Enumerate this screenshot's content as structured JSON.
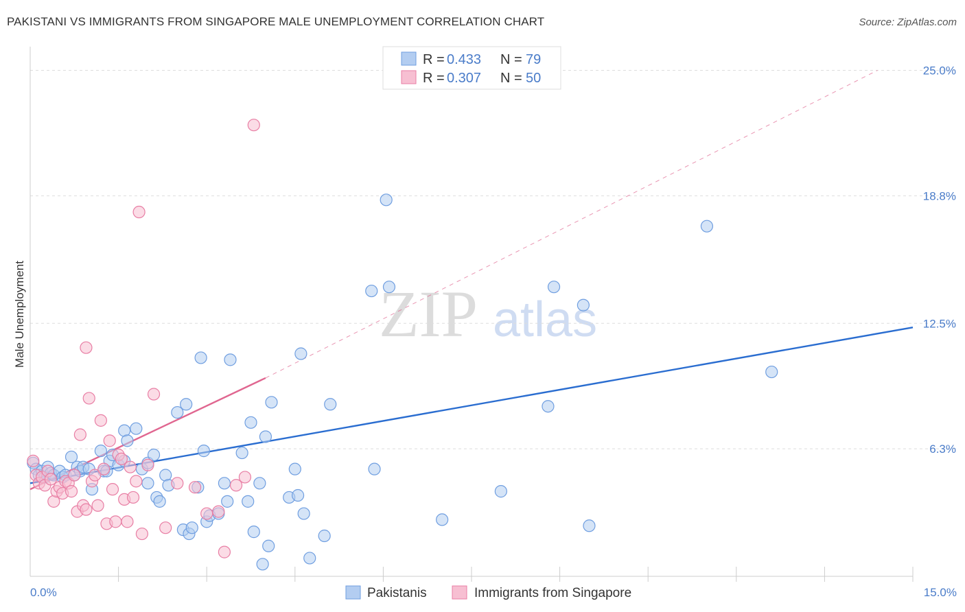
{
  "title": "PAKISTANI VS IMMIGRANTS FROM SINGAPORE MALE UNEMPLOYMENT CORRELATION CHART",
  "source": "Source: ZipAtlas.com",
  "watermark": {
    "zip": "ZIP",
    "atlas": "atlas"
  },
  "colors": {
    "blue": "#6f9ee0",
    "blue_fill": "#b3cdf1",
    "blue_line": "#2a6dd0",
    "pink": "#e87ea4",
    "pink_fill": "#f7bfd2",
    "pink_line": "#e06690",
    "grid": "#dddddd",
    "axis_text": "#4a7cc9"
  },
  "legend": {
    "r_label": "R =",
    "n_label": "N =",
    "rows": [
      {
        "series": "Pakistanis",
        "r": "0.433",
        "n": "79"
      },
      {
        "series": "Immigrants from Singapore",
        "r": "0.307",
        "n": "50"
      }
    ]
  },
  "chart_data": {
    "type": "scatter",
    "title": "PAKISTANI VS IMMIGRANTS FROM SINGAPORE MALE UNEMPLOYMENT CORRELATION CHART",
    "xlabel": "",
    "ylabel": "Male Unemployment",
    "xlim": [
      0,
      15
    ],
    "ylim": [
      0,
      25.9
    ],
    "x_tick_labels": [
      {
        "value": 0,
        "label": "0.0%"
      },
      {
        "value": 15,
        "label": "15.0%"
      }
    ],
    "y_ticks": [
      {
        "value": 6.3,
        "label": "6.3%"
      },
      {
        "value": 12.5,
        "label": "12.5%"
      },
      {
        "value": 18.8,
        "label": "18.8%"
      },
      {
        "value": 25.0,
        "label": "25.0%"
      }
    ],
    "x_minor_ticks": [
      1.5,
      3,
      4.5,
      6,
      7.5,
      9,
      10.5,
      12,
      13.5,
      15
    ],
    "legend_position": "top-center",
    "series": [
      {
        "name": "Pakistanis",
        "color": "blue",
        "trend": {
          "x0": 0,
          "y0": 4.6,
          "x1": 15,
          "y1": 12.3,
          "dashed_extension": false
        },
        "points": [
          [
            0.05,
            5.6
          ],
          [
            0.1,
            5.3
          ],
          [
            0.15,
            5.0
          ],
          [
            0.2,
            5.2
          ],
          [
            0.25,
            4.9
          ],
          [
            0.3,
            5.4
          ],
          [
            0.35,
            5.1
          ],
          [
            0.4,
            5.0
          ],
          [
            0.5,
            5.2
          ],
          [
            0.55,
            4.9
          ],
          [
            0.6,
            5.0
          ],
          [
            0.7,
            5.9
          ],
          [
            0.75,
            5.0
          ],
          [
            0.8,
            5.4
          ],
          [
            0.85,
            5.2
          ],
          [
            0.9,
            5.4
          ],
          [
            1.0,
            5.3
          ],
          [
            1.05,
            4.3
          ],
          [
            1.2,
            6.2
          ],
          [
            1.25,
            5.2
          ],
          [
            1.3,
            5.2
          ],
          [
            1.35,
            5.7
          ],
          [
            1.4,
            6.0
          ],
          [
            1.5,
            5.5
          ],
          [
            1.6,
            5.7
          ],
          [
            1.6,
            7.2
          ],
          [
            1.65,
            6.7
          ],
          [
            1.8,
            7.3
          ],
          [
            1.9,
            5.3
          ],
          [
            2.0,
            4.6
          ],
          [
            2.0,
            5.6
          ],
          [
            2.1,
            6.0
          ],
          [
            2.15,
            3.9
          ],
          [
            2.2,
            3.7
          ],
          [
            2.3,
            5.0
          ],
          [
            2.35,
            4.5
          ],
          [
            2.5,
            8.1
          ],
          [
            2.6,
            2.3
          ],
          [
            2.65,
            8.5
          ],
          [
            2.7,
            2.1
          ],
          [
            2.75,
            2.4
          ],
          [
            2.85,
            4.4
          ],
          [
            2.9,
            10.8
          ],
          [
            2.95,
            6.2
          ],
          [
            3.0,
            2.7
          ],
          [
            3.05,
            3.0
          ],
          [
            3.2,
            3.1
          ],
          [
            3.3,
            4.6
          ],
          [
            3.35,
            3.7
          ],
          [
            3.4,
            10.7
          ],
          [
            3.6,
            6.1
          ],
          [
            3.7,
            3.7
          ],
          [
            3.75,
            7.6
          ],
          [
            3.8,
            2.2
          ],
          [
            3.9,
            4.6
          ],
          [
            3.95,
            0.6
          ],
          [
            4.0,
            6.9
          ],
          [
            4.05,
            1.5
          ],
          [
            4.1,
            8.6
          ],
          [
            4.4,
            3.9
          ],
          [
            4.5,
            5.3
          ],
          [
            4.55,
            4.0
          ],
          [
            4.6,
            11.0
          ],
          [
            4.65,
            3.1
          ],
          [
            4.75,
            0.9
          ],
          [
            5.0,
            2.0
          ],
          [
            5.1,
            8.5
          ],
          [
            5.8,
            14.1
          ],
          [
            5.85,
            5.3
          ],
          [
            6.05,
            18.6
          ],
          [
            6.1,
            14.3
          ],
          [
            7.0,
            2.8
          ],
          [
            8.0,
            4.2
          ],
          [
            8.8,
            8.4
          ],
          [
            8.9,
            14.3
          ],
          [
            9.4,
            13.4
          ],
          [
            9.5,
            2.5
          ],
          [
            11.5,
            17.3
          ],
          [
            12.6,
            10.1
          ]
        ]
      },
      {
        "name": "Immigrants from Singapore",
        "color": "pink",
        "trend": {
          "x0": 0,
          "y0": 4.3,
          "x1": 4.0,
          "y1": 9.8,
          "dashed_extension": true,
          "dash_x1": 14.4,
          "dash_y1": 25.0
        },
        "points": [
          [
            0.05,
            5.7
          ],
          [
            0.1,
            5.0
          ],
          [
            0.15,
            4.6
          ],
          [
            0.2,
            4.9
          ],
          [
            0.25,
            4.5
          ],
          [
            0.3,
            5.2
          ],
          [
            0.35,
            4.8
          ],
          [
            0.4,
            3.7
          ],
          [
            0.45,
            4.2
          ],
          [
            0.5,
            4.4
          ],
          [
            0.55,
            4.1
          ],
          [
            0.6,
            4.7
          ],
          [
            0.65,
            4.6
          ],
          [
            0.7,
            4.2
          ],
          [
            0.75,
            5.0
          ],
          [
            0.8,
            3.2
          ],
          [
            0.85,
            7.0
          ],
          [
            0.9,
            3.5
          ],
          [
            0.95,
            3.3
          ],
          [
            0.95,
            11.3
          ],
          [
            1.0,
            8.8
          ],
          [
            1.05,
            4.7
          ],
          [
            1.1,
            5.0
          ],
          [
            1.15,
            3.5
          ],
          [
            1.2,
            7.7
          ],
          [
            1.25,
            5.3
          ],
          [
            1.3,
            2.6
          ],
          [
            1.35,
            6.7
          ],
          [
            1.4,
            4.3
          ],
          [
            1.45,
            2.7
          ],
          [
            1.5,
            6.0
          ],
          [
            1.55,
            5.8
          ],
          [
            1.6,
            3.8
          ],
          [
            1.65,
            2.7
          ],
          [
            1.7,
            5.4
          ],
          [
            1.75,
            3.9
          ],
          [
            1.8,
            4.7
          ],
          [
            1.85,
            18.0
          ],
          [
            1.9,
            2.1
          ],
          [
            2.0,
            5.5
          ],
          [
            2.1,
            9.0
          ],
          [
            2.3,
            2.4
          ],
          [
            2.5,
            4.6
          ],
          [
            2.8,
            4.4
          ],
          [
            3.0,
            3.1
          ],
          [
            3.2,
            3.2
          ],
          [
            3.3,
            1.2
          ],
          [
            3.5,
            4.5
          ],
          [
            3.65,
            4.9
          ],
          [
            3.8,
            22.3
          ]
        ]
      }
    ]
  },
  "bottom_legend": [
    {
      "label": "Pakistanis",
      "color": "blue"
    },
    {
      "label": "Immigrants from Singapore",
      "color": "pink"
    }
  ]
}
